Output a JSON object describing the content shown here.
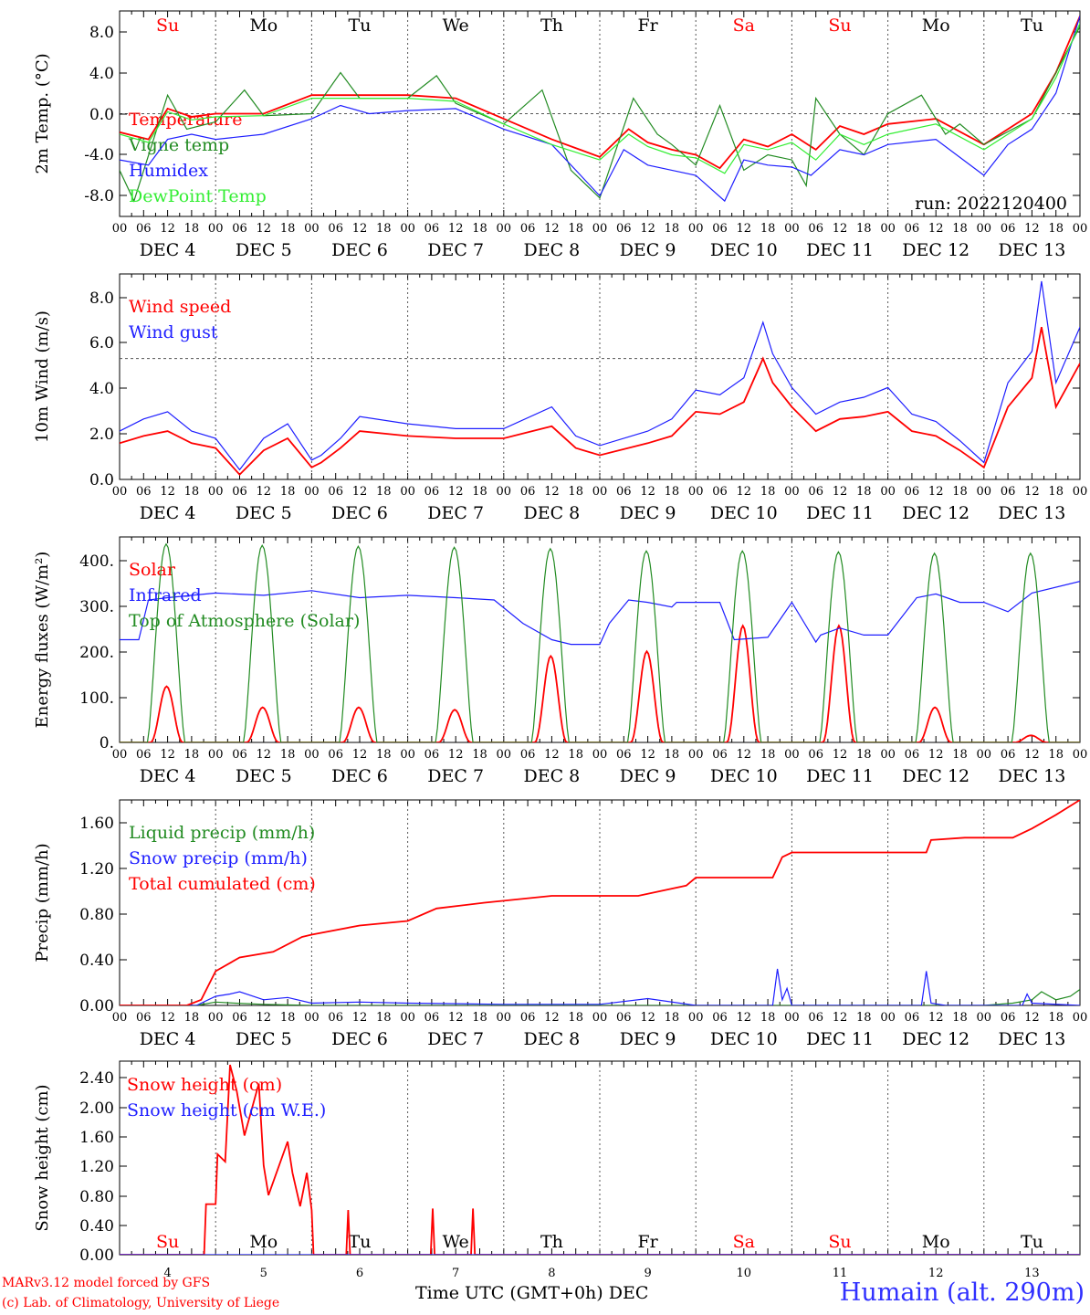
{
  "footer": {
    "model": "MARv3.12 model forced by GFS",
    "lab": "(c) Lab. of Climatology, University of Liege",
    "xlabel": "Time UTC (GMT+0h) DEC",
    "station": "Humain (alt. 290m)"
  },
  "colors": {
    "red": "#ff0000",
    "green": "#228b22",
    "blue": "#1e1eff",
    "lightgreen": "#33ee33",
    "weekend": "#ff0000",
    "weekday": "#000000"
  },
  "chart_data": [
    {
      "type": "line",
      "ylabel": "2m Temp. (°C)",
      "yticks": [
        "8.0",
        "4.0",
        "0.0",
        "-4.0",
        "-8.0"
      ],
      "ylim": [
        -10,
        10
      ],
      "refline": 0,
      "annotation": "run: 2022120400",
      "day_labels": [
        "Su",
        "Mo",
        "Tu",
        "We",
        "Th",
        "Fr",
        "Sa",
        "Su",
        "Mo",
        "Tu"
      ],
      "day_label_colors": [
        "red",
        "black",
        "black",
        "black",
        "black",
        "black",
        "red",
        "red",
        "black",
        "black"
      ],
      "date_labels": [
        "DEC  4",
        "DEC  5",
        "DEC  6",
        "DEC  7",
        "DEC  8",
        "DEC  9",
        "DEC 10",
        "DEC 11",
        "DEC 12",
        "DEC 13"
      ],
      "hour_labels": [
        "00",
        "06",
        "12",
        "18"
      ],
      "x_days": [
        4,
        5,
        6,
        7,
        8,
        9,
        10,
        11,
        12,
        13
      ],
      "series": [
        {
          "name": "Temperature",
          "color": "red",
          "x": [
            4.0,
            4.3,
            4.5,
            4.75,
            5.0,
            5.5,
            6.0,
            6.5,
            7.0,
            7.5,
            8.0,
            8.5,
            9.0,
            9.3,
            9.5,
            9.75,
            10.0,
            10.25,
            10.5,
            10.75,
            11.0,
            11.25,
            11.5,
            11.75,
            12.0,
            12.5,
            13.0,
            13.25,
            13.5,
            13.75,
            14.0
          ],
          "values": [
            -1.8,
            -2.5,
            0.5,
            -0.3,
            0.0,
            0.0,
            1.8,
            1.8,
            1.8,
            1.5,
            -0.5,
            -2.5,
            -4.2,
            -1.5,
            -2.8,
            -3.5,
            -4.0,
            -5.3,
            -2.5,
            -3.2,
            -2.0,
            -3.5,
            -1.2,
            -2.0,
            -1.0,
            -0.5,
            -3.0,
            -1.5,
            0.0,
            4.0,
            9.5
          ]
        },
        {
          "name": "Vigne temp",
          "color": "green",
          "x": [
            4.0,
            4.15,
            4.5,
            4.7,
            5.0,
            5.3,
            5.5,
            6.0,
            6.3,
            6.5,
            7.0,
            7.3,
            7.5,
            8.0,
            8.4,
            8.7,
            9.0,
            9.35,
            9.6,
            9.75,
            10.0,
            10.25,
            10.5,
            10.75,
            11.0,
            11.15,
            11.25,
            11.5,
            11.75,
            12.0,
            12.35,
            12.6,
            12.75,
            13.0,
            13.5,
            13.75,
            14.0
          ],
          "values": [
            -5.5,
            -8.5,
            1.8,
            -1.5,
            -0.8,
            2.3,
            -0.2,
            0.0,
            4.0,
            1.5,
            1.5,
            3.7,
            1.0,
            -1.0,
            2.3,
            -5.5,
            -8.2,
            1.5,
            -2.0,
            -3.0,
            -5.0,
            0.8,
            -5.5,
            -4.0,
            -4.5,
            -7.0,
            1.5,
            -2.0,
            -4.0,
            0.0,
            1.8,
            -2.0,
            -1.0,
            -3.0,
            -0.5,
            4.0,
            8.5
          ]
        },
        {
          "name": "Humidex",
          "color": "blue",
          "x": [
            4.0,
            4.3,
            4.5,
            4.75,
            5.0,
            5.5,
            6.0,
            6.3,
            6.6,
            7.0,
            7.5,
            8.0,
            8.5,
            8.8,
            9.0,
            9.25,
            9.5,
            9.75,
            10.0,
            10.3,
            10.5,
            10.75,
            11.0,
            11.2,
            11.5,
            11.75,
            12.0,
            12.5,
            13.0,
            13.25,
            13.5,
            13.75,
            14.0
          ],
          "values": [
            -4.5,
            -5.0,
            -2.5,
            -2.0,
            -2.5,
            -2.0,
            -0.5,
            0.8,
            0.0,
            0.3,
            0.5,
            -1.5,
            -3.0,
            -6.0,
            -8.0,
            -3.5,
            -5.0,
            -5.5,
            -6.0,
            -8.5,
            -4.5,
            -5.0,
            -5.2,
            -6.0,
            -3.5,
            -4.0,
            -3.0,
            -2.5,
            -6.0,
            -3.0,
            -1.5,
            2.0,
            9.5
          ]
        },
        {
          "name": "DewPoint Temp",
          "color": "lightgreen",
          "x": [
            4.0,
            4.3,
            4.5,
            4.75,
            5.0,
            5.5,
            6.0,
            6.5,
            7.0,
            7.5,
            8.0,
            8.5,
            9.0,
            9.3,
            9.5,
            9.75,
            10.0,
            10.3,
            10.5,
            10.75,
            11.0,
            11.25,
            11.5,
            11.75,
            12.0,
            12.5,
            13.0,
            13.25,
            13.5,
            13.75,
            14.0
          ],
          "values": [
            -2.0,
            -2.8,
            0.2,
            -0.6,
            -0.3,
            -0.2,
            1.5,
            1.5,
            1.5,
            1.2,
            -1.0,
            -3.0,
            -4.5,
            -2.0,
            -3.2,
            -4.0,
            -4.3,
            -5.8,
            -3.0,
            -3.5,
            -2.8,
            -4.5,
            -2.0,
            -3.0,
            -2.0,
            -1.0,
            -3.5,
            -2.0,
            -0.5,
            3.5,
            8.8
          ]
        }
      ]
    },
    {
      "type": "line",
      "ylabel": "10m Wind (m/s)",
      "yticks": [
        "8.0",
        "6.0",
        "4.0",
        "2.0",
        "0.0"
      ],
      "ylim": [
        0,
        8.5
      ],
      "refline": 5,
      "date_labels": [
        "DEC  4",
        "DEC  5",
        "DEC  6",
        "DEC  7",
        "DEC  8",
        "DEC  9",
        "DEC 10",
        "DEC 11",
        "DEC 12",
        "DEC 13"
      ],
      "series": [
        {
          "name": "Wind speed",
          "color": "red",
          "x": [
            4.0,
            4.25,
            4.5,
            4.75,
            5.0,
            5.25,
            5.5,
            5.75,
            6.0,
            6.1,
            6.3,
            6.5,
            7.0,
            7.5,
            8.0,
            8.5,
            8.75,
            9.0,
            9.5,
            9.75,
            10.0,
            10.25,
            10.5,
            10.7,
            10.8,
            11.0,
            11.25,
            11.5,
            11.75,
            12.0,
            12.25,
            12.5,
            12.75,
            13.0,
            13.25,
            13.5,
            13.6,
            13.75,
            14.0
          ],
          "values": [
            1.5,
            1.8,
            2.0,
            1.5,
            1.3,
            0.2,
            1.2,
            1.7,
            0.5,
            0.7,
            1.3,
            2.0,
            1.8,
            1.7,
            1.7,
            2.2,
            1.3,
            1.0,
            1.5,
            1.8,
            2.8,
            2.7,
            3.2,
            5.0,
            4.0,
            3.0,
            2.0,
            2.5,
            2.6,
            2.8,
            2.0,
            1.8,
            1.2,
            0.5,
            3.0,
            4.2,
            6.3,
            3.0,
            4.8
          ]
        },
        {
          "name": "Wind gust",
          "color": "blue",
          "x": [
            4.0,
            4.25,
            4.5,
            4.75,
            5.0,
            5.25,
            5.5,
            5.75,
            6.0,
            6.1,
            6.3,
            6.5,
            7.0,
            7.5,
            8.0,
            8.5,
            8.75,
            9.0,
            9.5,
            9.75,
            10.0,
            10.25,
            10.5,
            10.7,
            10.8,
            11.0,
            11.25,
            11.5,
            11.75,
            12.0,
            12.25,
            12.5,
            12.75,
            13.0,
            13.25,
            13.5,
            13.6,
            13.75,
            14.0
          ],
          "values": [
            2.0,
            2.5,
            2.8,
            2.0,
            1.7,
            0.4,
            1.7,
            2.3,
            0.8,
            1.0,
            1.7,
            2.6,
            2.3,
            2.1,
            2.1,
            3.0,
            1.8,
            1.4,
            2.0,
            2.5,
            3.7,
            3.5,
            4.2,
            6.5,
            5.2,
            3.8,
            2.7,
            3.2,
            3.4,
            3.8,
            2.7,
            2.4,
            1.6,
            0.7,
            4.0,
            5.3,
            8.2,
            4.0,
            6.3
          ]
        }
      ]
    },
    {
      "type": "line",
      "ylabel": "Energy fluxes (W/m²)",
      "yticks": [
        "400.",
        "300.",
        "200.",
        "100.",
        "0."
      ],
      "ylim": [
        0,
        440
      ],
      "date_labels": [
        "DEC  4",
        "DEC  5",
        "DEC  6",
        "DEC  7",
        "DEC  8",
        "DEC  9",
        "DEC 10",
        "DEC 11",
        "DEC 12",
        "DEC 13"
      ],
      "series": [
        {
          "name": "Solar",
          "color": "red",
          "peaks": [
            120,
            75,
            75,
            70,
            185,
            195,
            250,
            250,
            75,
            15
          ]
        },
        {
          "name": "Infrared",
          "color": "blue",
          "x": [
            4.0,
            4.2,
            4.3,
            4.5,
            5.0,
            5.5,
            6.0,
            6.5,
            7.0,
            7.5,
            7.9,
            8.2,
            8.5,
            8.7,
            9.0,
            9.1,
            9.3,
            9.5,
            9.75,
            9.8,
            10.25,
            10.4,
            10.75,
            11.0,
            11.25,
            11.3,
            11.5,
            11.75,
            12.0,
            12.3,
            12.5,
            12.75,
            13.0,
            13.25,
            13.5,
            14.0
          ],
          "values": [
            220,
            220,
            305,
            310,
            320,
            315,
            325,
            310,
            315,
            310,
            305,
            255,
            220,
            210,
            210,
            255,
            305,
            300,
            290,
            300,
            300,
            220,
            225,
            300,
            215,
            230,
            245,
            230,
            230,
            310,
            318,
            300,
            300,
            280,
            320,
            345
          ]
        },
        {
          "name": "Top of Atmosphere (Solar)",
          "color": "green",
          "peaks": [
            425,
            422,
            420,
            418,
            415,
            410,
            410,
            408,
            405,
            405
          ]
        }
      ]
    },
    {
      "type": "line",
      "ylabel": "Precip (mm/h)",
      "yticks": [
        "1.60",
        "1.20",
        "0.80",
        "0.40",
        "0.00"
      ],
      "ylim": [
        0,
        1.8
      ],
      "date_labels": [
        "DEC  4",
        "DEC  5",
        "DEC  6",
        "DEC  7",
        "DEC  8",
        "DEC  9",
        "DEC 10",
        "DEC 11",
        "DEC 12",
        "DEC 13"
      ],
      "series": [
        {
          "name": "Liquid precip (mm/h)",
          "color": "green",
          "x": [
            4.0,
            4.8,
            5.0,
            5.2,
            5.5,
            6.0,
            8.0,
            10.0,
            13.0,
            13.3,
            13.5,
            13.6,
            13.75,
            13.9,
            14.0
          ],
          "values": [
            0,
            0,
            0.03,
            0.02,
            0.01,
            0,
            0,
            0,
            0,
            0.02,
            0.05,
            0.12,
            0.05,
            0.08,
            0.14
          ]
        },
        {
          "name": "Snow precip (mm/h)",
          "color": "blue",
          "x": [
            4.0,
            4.8,
            5.0,
            5.15,
            5.25,
            5.5,
            5.75,
            6.0,
            6.5,
            7.0,
            8.0,
            9.0,
            9.5,
            10.0,
            10.8,
            10.85,
            10.9,
            10.95,
            11.0,
            11.5,
            12.0,
            12.35,
            12.4,
            12.45,
            12.6,
            13.0,
            13.4,
            13.45,
            13.5,
            14.0
          ],
          "values": [
            0,
            0,
            0.08,
            0.1,
            0.12,
            0.05,
            0.07,
            0.02,
            0.03,
            0.02,
            0.01,
            0.01,
            0.06,
            0.0,
            0.0,
            0.32,
            0.05,
            0.15,
            0.0,
            0,
            0,
            0,
            0.3,
            0.02,
            0.0,
            0,
            0,
            0.1,
            0.02,
            0
          ]
        },
        {
          "name": "Total cumulated (cm)",
          "color": "red",
          "x": [
            4.0,
            4.7,
            4.85,
            5.0,
            5.25,
            5.6,
            5.9,
            6.0,
            6.5,
            7.0,
            7.3,
            7.8,
            8.5,
            9.0,
            9.4,
            9.9,
            10.0,
            10.5,
            10.8,
            10.9,
            11.0,
            11.5,
            12.0,
            12.4,
            12.45,
            12.8,
            13.3,
            13.5,
            13.75,
            14.0
          ],
          "values": [
            0,
            0,
            0.05,
            0.3,
            0.42,
            0.47,
            0.6,
            0.62,
            0.7,
            0.74,
            0.85,
            0.9,
            0.96,
            0.96,
            0.96,
            1.05,
            1.12,
            1.12,
            1.12,
            1.3,
            1.34,
            1.34,
            1.34,
            1.34,
            1.45,
            1.47,
            1.47,
            1.55,
            1.67,
            1.8
          ]
        }
      ]
    },
    {
      "type": "line",
      "ylabel": "Snow height (cm)",
      "yticks": [
        "2.40",
        "2.00",
        "1.60",
        "1.20",
        "0.80",
        "0.40",
        "0.00"
      ],
      "ylim": [
        0,
        2.6
      ],
      "day_labels": [
        "Su",
        "Mo",
        "Tu",
        "We",
        "Th",
        "Fr",
        "Sa",
        "Su",
        "Mo",
        "Tu"
      ],
      "day_label_colors": [
        "red",
        "black",
        "black",
        "black",
        "black",
        "black",
        "red",
        "red",
        "black",
        "black"
      ],
      "x_ticklabels": [
        "4",
        "5",
        "6",
        "7",
        "8",
        "9",
        "10",
        "11",
        "12",
        "13"
      ],
      "series": [
        {
          "name": "Snow height (cm)",
          "color": "red",
          "x": [
            4.0,
            4.88,
            4.9,
            4.96,
            5.0,
            5.02,
            5.1,
            5.15,
            5.22,
            5.3,
            5.45,
            5.5,
            5.55,
            5.75,
            5.8,
            5.88,
            5.95,
            6.0,
            6.02,
            6.05,
            6.3,
            6.32,
            6.34,
            6.36,
            6.38,
            6.4,
            6.5,
            6.95,
            7.0,
            7.05,
            7.1,
            7.2,
            7.22,
            7.24,
            7.26,
            7.28,
            7.3,
            7.32,
            7.34,
            7.6,
            7.62,
            7.64,
            7.66,
            7.68,
            7.7,
            7.72,
            7.74,
            7.76,
            7.78,
            7.8,
            7.82,
            7.84,
            7.86,
            7.9,
            8.0,
            9.0,
            9.5,
            9.8,
            9.85,
            10.0,
            10.5,
            10.8,
            11.0,
            11.25,
            11.5,
            12.0,
            12.5,
            12.55,
            12.8,
            13.0,
            13.5,
            13.7,
            13.85,
            13.95,
            14.0
          ],
          "values": [
            0,
            0,
            0.68,
            0.68,
            0.68,
            1.35,
            1.25,
            2.55,
            2.2,
            1.6,
            2.3,
            1.2,
            0.8,
            1.52,
            1.1,
            0.65,
            1.1,
            0.6,
            0.0,
            0.0,
            0.0,
            0.0,
            0.0,
            0.0,
            0.6,
            0.0,
            0.0,
            0.0,
            0.0,
            0.0,
            0.0,
            0.0,
            0.0,
            0.0,
            0.62,
            0.0,
            0.0,
            0.0,
            0.0,
            0.0,
            0.0,
            0.0,
            0.0,
            0.62,
            0.0,
            0.0,
            0.0,
            0.0,
            0.0,
            0.0,
            0.0,
            0.0,
            0.0,
            0.0,
            0.0,
            0.0,
            0.0,
            0.0,
            0.0,
            0.0,
            0.0,
            0.0,
            0.0,
            0.0,
            0.0,
            0.0,
            0.0,
            0.0,
            0.0,
            0.0,
            0.0,
            0.0,
            0.0,
            0.0,
            0.0
          ]
        },
        {
          "name": "Snow height (cm W.E.)",
          "color": "blue",
          "x": [
            4.0,
            14.0
          ],
          "values": [
            0,
            0
          ]
        }
      ]
    }
  ]
}
